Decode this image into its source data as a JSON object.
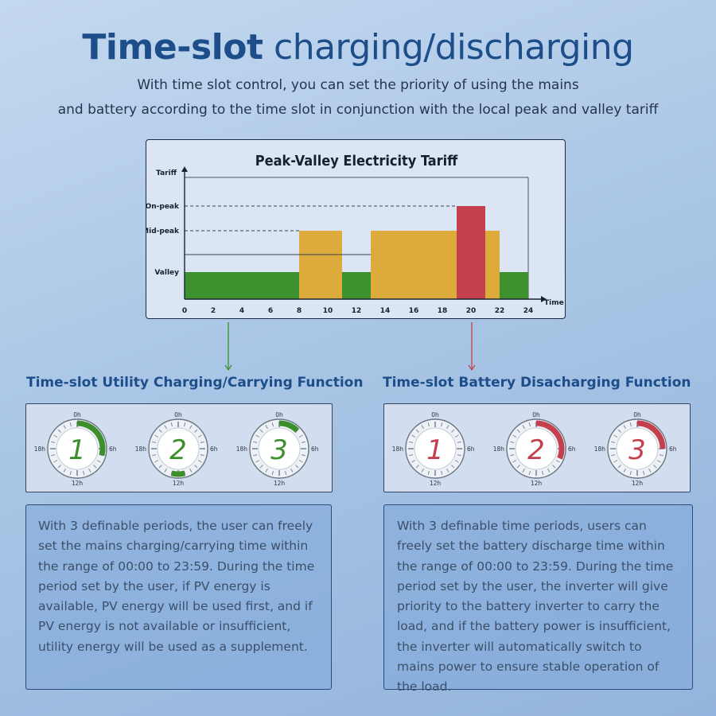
{
  "header": {
    "title_bold": "Time-slot",
    "title_rest": " charging/discharging",
    "subtitle_line1": "With time slot control, you can set the priority of using the mains",
    "subtitle_line2": "and battery according to the time slot in conjunction with the local peak and valley tariff"
  },
  "chart_data": {
    "type": "bar",
    "title": "Peak-Valley Electricity Tariff",
    "xlabel": "Time",
    "ylabel": "Tariff",
    "xlim": [
      0,
      24
    ],
    "x_ticks": [
      0,
      2,
      4,
      6,
      8,
      10,
      12,
      14,
      16,
      18,
      20,
      22,
      24
    ],
    "y_levels": [
      {
        "name": "Valley",
        "value": 1
      },
      {
        "name": "Mid-peak",
        "value": 2
      },
      {
        "name": "On-peak",
        "value": 3
      }
    ],
    "grid": false,
    "segments": [
      {
        "start": 0,
        "end": 8,
        "level": "Valley",
        "color": "#3f912f"
      },
      {
        "start": 8,
        "end": 11,
        "level": "Mid-peak",
        "color": "#dcab3c"
      },
      {
        "start": 11,
        "end": 13,
        "level": "Valley",
        "color": "#3f912f"
      },
      {
        "start": 13,
        "end": 19,
        "level": "Mid-peak",
        "color": "#dcab3c"
      },
      {
        "start": 19,
        "end": 21,
        "level": "On-peak",
        "color": "#c4404f"
      },
      {
        "start": 21,
        "end": 22,
        "level": "Mid-peak",
        "color": "#dcab3c"
      },
      {
        "start": 22,
        "end": 24,
        "level": "Valley",
        "color": "#3f912f"
      }
    ]
  },
  "utility": {
    "title": "Time-slot Utility Charging/Carrying Function",
    "accent": "#3c8f2c",
    "hour_labels": [
      "0h",
      "6h",
      "12h",
      "18h"
    ],
    "clocks": [
      {
        "number": "1",
        "arc_start_hour": 0,
        "arc_end_hour": 7
      },
      {
        "number": "2",
        "arc_start_hour": 11,
        "arc_end_hour": 13
      },
      {
        "number": "3",
        "arc_start_hour": 0,
        "arc_end_hour": 3
      }
    ],
    "description": "With 3 definable periods, the user can freely set the mains charging/carrying time within the range of 00:00 to 23:59. During the time period set by the user, if PV energy is available, PV energy will be used first, and if PV energy is not available or insufficient, utility energy will be used as a supplement."
  },
  "battery": {
    "title": "Time-slot Battery Disacharging Function",
    "accent": "#c4404f",
    "hour_labels": [
      "0h",
      "6h",
      "12h",
      "18h"
    ],
    "clocks": [
      {
        "number": "1",
        "arc_start_hour": 0,
        "arc_end_hour": 0
      },
      {
        "number": "2",
        "arc_start_hour": 0,
        "arc_end_hour": 7.5
      },
      {
        "number": "3",
        "arc_start_hour": 0,
        "arc_end_hour": 6
      }
    ],
    "description": "With 3 definable time periods, users can freely set the battery discharge time within the range of 00:00 to 23:59. During the time period set by the user, the inverter will give priority to the battery inverter to carry the load, and if the battery power is insufficient, the inverter will automatically switch to mains power to ensure stable operation of the load."
  }
}
